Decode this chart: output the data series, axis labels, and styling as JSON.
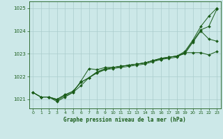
{
  "title": "Graphe pression niveau de la mer (hPa)",
  "background_color": "#cce8e8",
  "grid_color": "#aacccc",
  "line_color": "#1a5c1a",
  "xlim": [
    -0.5,
    23.5
  ],
  "ylim": [
    1020.6,
    1025.3
  ],
  "yticks": [
    1021,
    1022,
    1023,
    1024,
    1025
  ],
  "xticks": [
    0,
    1,
    2,
    3,
    4,
    5,
    6,
    7,
    8,
    9,
    10,
    11,
    12,
    13,
    14,
    15,
    16,
    17,
    18,
    19,
    20,
    21,
    22,
    23
  ],
  "series": [
    [
      1021.3,
      1021.1,
      1021.1,
      1020.95,
      1021.15,
      1021.3,
      1021.6,
      1021.95,
      1022.2,
      1022.35,
      1022.4,
      1022.45,
      1022.5,
      1022.55,
      1022.6,
      1022.7,
      1022.75,
      1022.85,
      1022.9,
      1023.1,
      1023.6,
      1024.2,
      1024.65,
      1025.0
    ],
    [
      1021.3,
      1021.1,
      1021.1,
      1020.9,
      1021.1,
      1021.3,
      1021.8,
      1022.35,
      1022.3,
      1022.4,
      1022.4,
      1022.45,
      1022.5,
      1022.55,
      1022.6,
      1022.7,
      1022.8,
      1022.85,
      1022.9,
      1023.05,
      1023.55,
      1024.05,
      1024.2,
      1024.95
    ],
    [
      1021.3,
      1021.1,
      1021.1,
      1021.0,
      1021.2,
      1021.35,
      1021.75,
      1021.95,
      1022.2,
      1022.3,
      1022.4,
      1022.45,
      1022.5,
      1022.55,
      1022.6,
      1022.7,
      1022.8,
      1022.85,
      1022.9,
      1023.0,
      1023.5,
      1024.0,
      1023.65,
      1023.55
    ],
    [
      1021.3,
      1021.1,
      1021.1,
      1021.0,
      1021.2,
      1021.35,
      1021.75,
      1021.95,
      1022.15,
      1022.3,
      1022.35,
      1022.4,
      1022.45,
      1022.5,
      1022.55,
      1022.65,
      1022.75,
      1022.8,
      1022.85,
      1023.05,
      1023.05,
      1023.05,
      1022.95,
      1023.1
    ]
  ]
}
